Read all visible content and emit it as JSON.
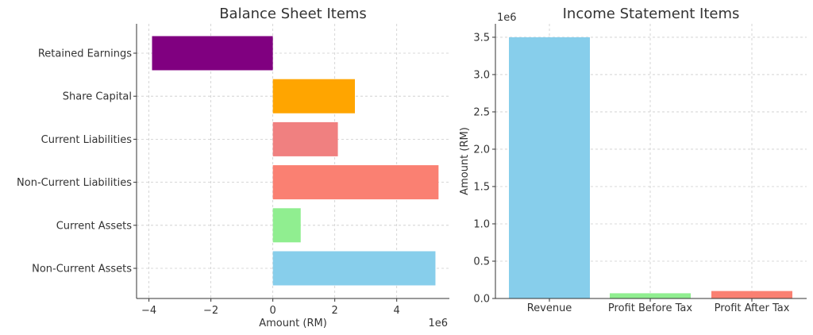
{
  "chart_data": [
    {
      "type": "bar",
      "orientation": "horizontal",
      "title": "Balance Sheet Items",
      "xlabel": "Amount (RM)",
      "ylabel": "",
      "offset_label": "1e6",
      "xlim": [
        -4.4,
        5.7
      ],
      "xticks": [
        -4,
        -2,
        0,
        2,
        4
      ],
      "xtick_labels": [
        "−4",
        "−2",
        "0",
        "2",
        "4"
      ],
      "grid": true,
      "categories": [
        "Non-Current Assets",
        "Current Assets",
        "Non-Current Liabilities",
        "Current Liabilities",
        "Share Capital",
        "Retained Earnings"
      ],
      "values": [
        5.25,
        0.9,
        5.35,
        2.1,
        2.65,
        -3.9
      ],
      "colors": [
        "#87ceeb",
        "#90ee90",
        "#fa8072",
        "#f08080",
        "#ffa500",
        "#800080"
      ]
    },
    {
      "type": "bar",
      "title": "Income Statement Items",
      "xlabel": "",
      "ylabel": "Amount (RM)",
      "offset_label": "1e6",
      "ylim": [
        0,
        3.68
      ],
      "yticks": [
        0,
        0.5,
        1.0,
        1.5,
        2.0,
        2.5,
        3.0,
        3.5
      ],
      "ytick_labels": [
        "0.0",
        "0.5",
        "1.0",
        "1.5",
        "2.0",
        "2.5",
        "3.0",
        "3.5"
      ],
      "grid": true,
      "categories": [
        "Revenue",
        "Profit Before Tax",
        "Profit After Tax"
      ],
      "values": [
        3.5,
        0.07,
        0.1
      ],
      "colors": [
        "#87ceeb",
        "#90ee90",
        "#fa8072"
      ]
    }
  ]
}
